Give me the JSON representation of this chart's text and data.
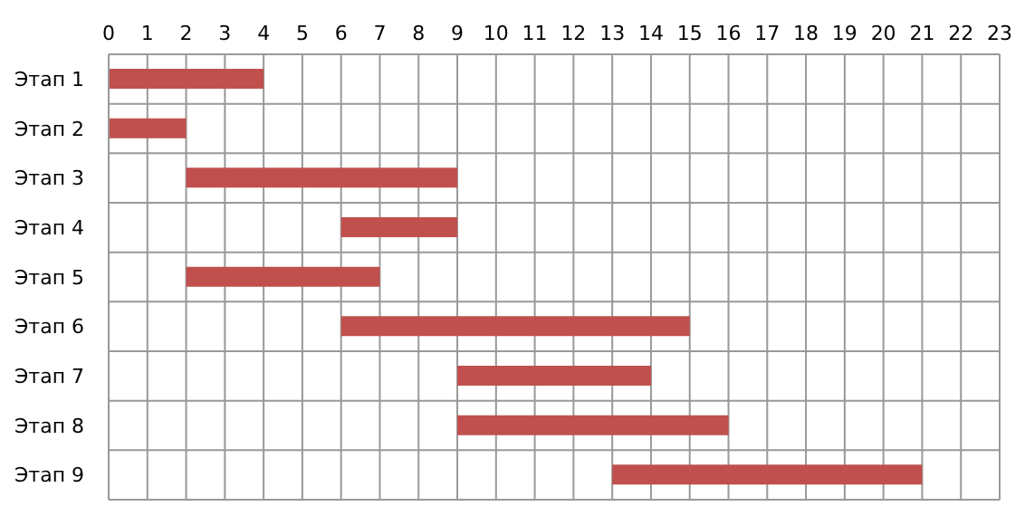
{
  "chart_data": {
    "type": "bar",
    "orientation": "horizontal",
    "categories": [
      "Этап 1",
      "Этап 2",
      "Этап 3",
      "Этап 4",
      "Этап 5",
      "Этап 6",
      "Этап 7",
      "Этап 8",
      "Этап 9"
    ],
    "base": [
      0,
      0,
      2,
      6,
      2,
      6,
      9,
      9,
      13
    ],
    "values": [
      4,
      2,
      7,
      3,
      5,
      9,
      5,
      7,
      8
    ],
    "color": "#c0504d",
    "xlim": [
      0,
      23
    ],
    "xticks": [
      0,
      1,
      2,
      3,
      4,
      5,
      6,
      7,
      8,
      9,
      10,
      11,
      12,
      13,
      14,
      15,
      16,
      17,
      18,
      19,
      20,
      21,
      22,
      23
    ],
    "grid": true
  }
}
